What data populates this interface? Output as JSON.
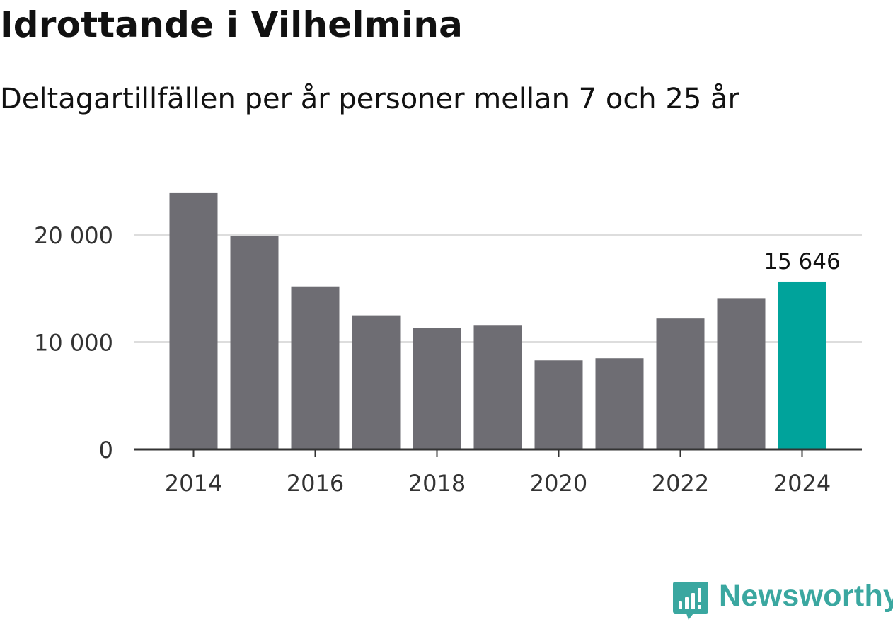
{
  "header": {
    "title": "Idrottande i Vilhelmina",
    "subtitle": "Deltagartillfällen per år personer mellan 7 och 25 år"
  },
  "brand": {
    "name": "Newsworthy",
    "color": "#3aa7a0"
  },
  "colors": {
    "bar": "#6e6d73",
    "highlight": "#00a39b",
    "grid": "#dddddd",
    "axis": "#333333"
  },
  "chart_data": {
    "type": "bar",
    "title": "Idrottande i Vilhelmina",
    "subtitle": "Deltagartillfällen per år personer mellan 7 och 25 år",
    "xlabel": "",
    "ylabel": "",
    "categories": [
      "2014",
      "2015",
      "2016",
      "2017",
      "2018",
      "2019",
      "2020",
      "2021",
      "2022",
      "2023",
      "2024"
    ],
    "values": [
      23900,
      19900,
      15200,
      12500,
      11300,
      11600,
      8300,
      8500,
      12200,
      14100,
      15646
    ],
    "highlight_index": 10,
    "highlight_label": "15 646",
    "ylim": [
      0,
      25000
    ],
    "yticks": [
      0,
      10000,
      20000
    ],
    "ytick_labels": [
      "0",
      "10 000",
      "20 000"
    ],
    "xtick_labels": [
      "2014",
      "2016",
      "2018",
      "2020",
      "2022",
      "2024"
    ],
    "grid": true,
    "legend": "none"
  }
}
